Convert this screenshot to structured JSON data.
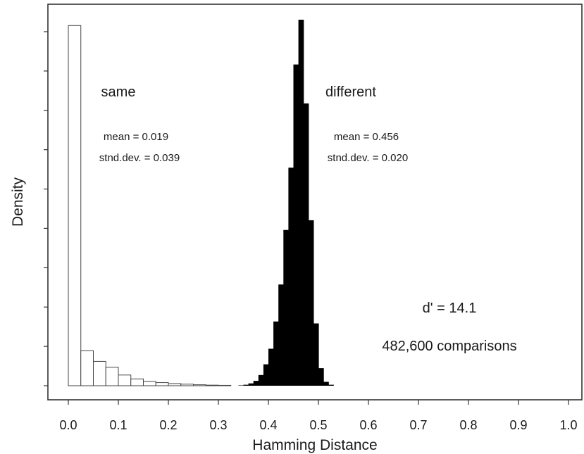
{
  "chart_data": {
    "type": "bar",
    "xlabel": "Hamming Distance",
    "ylabel": "Density",
    "xlim": [
      -0.05,
      1.02
    ],
    "x_ticks": [
      "0.0",
      "0.1",
      "0.2",
      "0.3",
      "0.4",
      "0.5",
      "0.6",
      "0.7",
      "0.8",
      "0.9",
      "1.0"
    ],
    "y_tick_count": 10,
    "grid": false,
    "series": [
      {
        "name": "same",
        "fill": "hollow",
        "bins": [
          {
            "x0": 0.0,
            "x1": 0.025,
            "density": 18.5
          },
          {
            "x0": 0.025,
            "x1": 0.05,
            "density": 1.8
          },
          {
            "x0": 0.05,
            "x1": 0.075,
            "density": 1.25
          },
          {
            "x0": 0.075,
            "x1": 0.1,
            "density": 0.95
          },
          {
            "x0": 0.1,
            "x1": 0.125,
            "density": 0.55
          },
          {
            "x0": 0.125,
            "x1": 0.15,
            "density": 0.35
          },
          {
            "x0": 0.15,
            "x1": 0.175,
            "density": 0.22
          },
          {
            "x0": 0.175,
            "x1": 0.2,
            "density": 0.16
          },
          {
            "x0": 0.2,
            "x1": 0.225,
            "density": 0.11
          },
          {
            "x0": 0.225,
            "x1": 0.25,
            "density": 0.08
          },
          {
            "x0": 0.25,
            "x1": 0.275,
            "density": 0.05
          },
          {
            "x0": 0.275,
            "x1": 0.3,
            "density": 0.03
          },
          {
            "x0": 0.3,
            "x1": 0.325,
            "density": 0.02
          }
        ]
      },
      {
        "name": "different",
        "fill": "solid",
        "color": "#000000",
        "bins": [
          {
            "x0": 0.34,
            "x1": 0.35,
            "density": 0.02
          },
          {
            "x0": 0.35,
            "x1": 0.36,
            "density": 0.05
          },
          {
            "x0": 0.36,
            "x1": 0.37,
            "density": 0.12
          },
          {
            "x0": 0.37,
            "x1": 0.38,
            "density": 0.25
          },
          {
            "x0": 0.38,
            "x1": 0.39,
            "density": 0.55
          },
          {
            "x0": 0.39,
            "x1": 0.4,
            "density": 1.1
          },
          {
            "x0": 0.4,
            "x1": 0.41,
            "density": 1.9
          },
          {
            "x0": 0.41,
            "x1": 0.42,
            "density": 3.3
          },
          {
            "x0": 0.42,
            "x1": 0.43,
            "density": 5.2
          },
          {
            "x0": 0.43,
            "x1": 0.44,
            "density": 8.0
          },
          {
            "x0": 0.44,
            "x1": 0.45,
            "density": 11.2
          },
          {
            "x0": 0.45,
            "x1": 0.46,
            "density": 16.5
          },
          {
            "x0": 0.46,
            "x1": 0.47,
            "density": 18.8
          },
          {
            "x0": 0.47,
            "x1": 0.48,
            "density": 14.5
          },
          {
            "x0": 0.48,
            "x1": 0.49,
            "density": 8.5
          },
          {
            "x0": 0.49,
            "x1": 0.5,
            "density": 3.2
          },
          {
            "x0": 0.5,
            "x1": 0.51,
            "density": 0.9
          },
          {
            "x0": 0.51,
            "x1": 0.52,
            "density": 0.2
          },
          {
            "x0": 0.52,
            "x1": 0.53,
            "density": 0.05
          }
        ]
      }
    ],
    "annotations": {
      "same_label": "same",
      "same_mean": "mean = 0.019",
      "same_sd": "stnd.dev. = 0.039",
      "different_label": "different",
      "different_mean": "mean = 0.456",
      "different_sd": "stnd.dev. = 0.020",
      "dprime": "d' = 14.1",
      "comparisons": "482,600 comparisons"
    }
  }
}
